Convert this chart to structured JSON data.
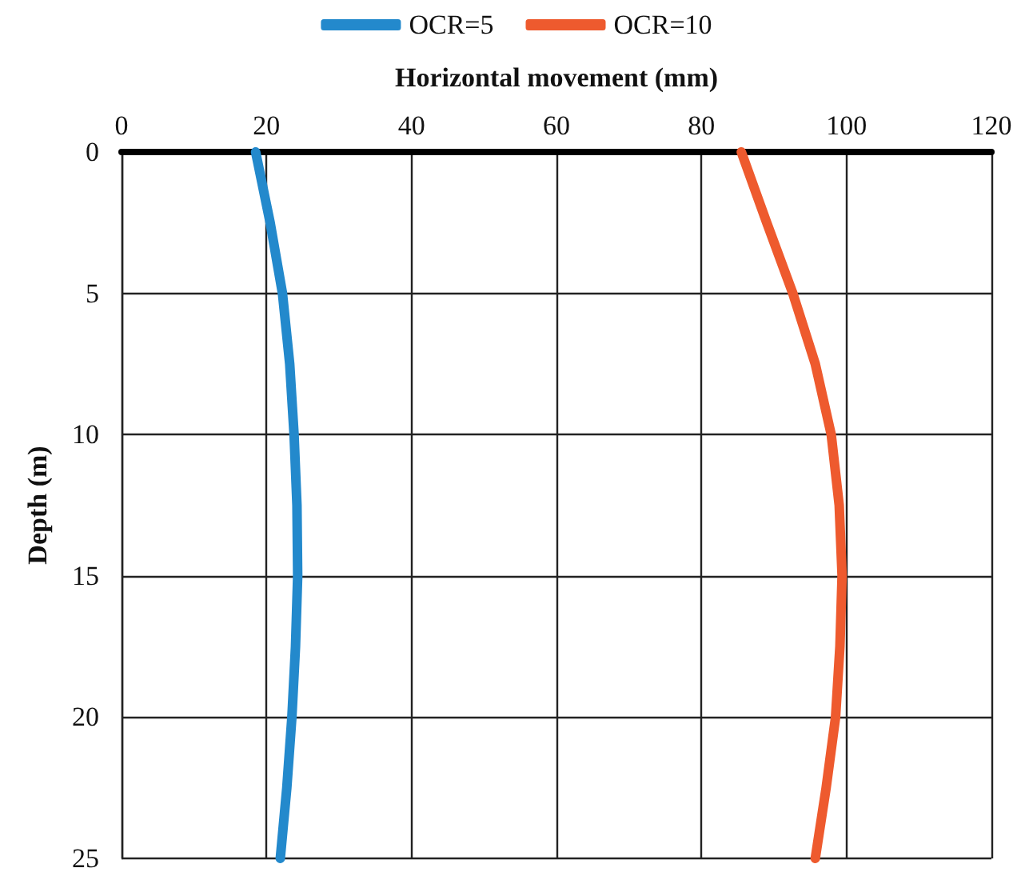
{
  "chart_data": {
    "type": "line",
    "xlabel": "Horizontal movement (mm)",
    "ylabel": "Depth (m)",
    "xlim": [
      0,
      120
    ],
    "xticks": [
      0,
      20,
      40,
      60,
      80,
      100,
      120
    ],
    "ylim": [
      25,
      0
    ],
    "yticks": [
      0,
      5,
      10,
      15,
      20,
      25
    ],
    "grid": true,
    "legend": "top",
    "marker": "none",
    "line_style": "solid",
    "series": [
      {
        "name": "OCR=5",
        "color": "#2389cc",
        "x": [
          18.5,
          20.5,
          22.2,
          23.2,
          23.8,
          24.2,
          24.3,
          24.0,
          23.5,
          22.8,
          21.9
        ],
        "values": [
          0,
          2.5,
          5,
          7.5,
          10,
          12.5,
          15,
          17.5,
          20,
          22.5,
          25
        ]
      },
      {
        "name": "OCR=10",
        "color": "#ee5a2e",
        "x": [
          85.5,
          89,
          92.6,
          95.7,
          97.9,
          99,
          99.4,
          99.1,
          98.5,
          97.2,
          95.7
        ],
        "values": [
          0,
          2.5,
          5,
          7.5,
          10,
          12.5,
          15,
          17.5,
          20,
          22.5,
          25
        ]
      }
    ]
  }
}
